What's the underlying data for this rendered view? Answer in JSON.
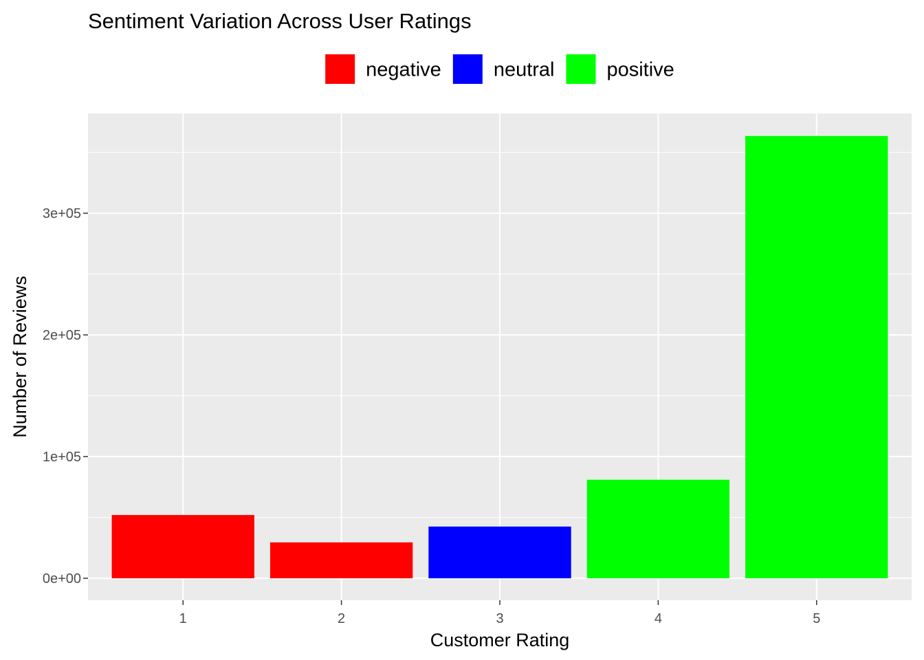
{
  "chart_data": {
    "type": "bar",
    "title": "Sentiment Variation Across User Ratings",
    "xlabel": "Customer Rating",
    "ylabel": "Number of Reviews",
    "categories": [
      "1",
      "2",
      "3",
      "4",
      "5"
    ],
    "values": [
      52000,
      29500,
      42500,
      81000,
      363500
    ],
    "bar_groups": [
      "negative",
      "negative",
      "neutral",
      "positive",
      "positive"
    ],
    "ylim": [
      -18000,
      382000
    ],
    "yticks": [
      0,
      100000,
      200000,
      300000
    ],
    "ytick_labels": [
      "0e+00",
      "1e+05",
      "2e+05",
      "3e+05"
    ],
    "legend": {
      "position": "top",
      "entries": [
        {
          "name": "negative",
          "color": "#FF0000"
        },
        {
          "name": "neutral",
          "color": "#0000FF"
        },
        {
          "name": "positive",
          "color": "#00FF00"
        }
      ]
    },
    "grid": true,
    "panel_background": "#EBEBEB"
  }
}
